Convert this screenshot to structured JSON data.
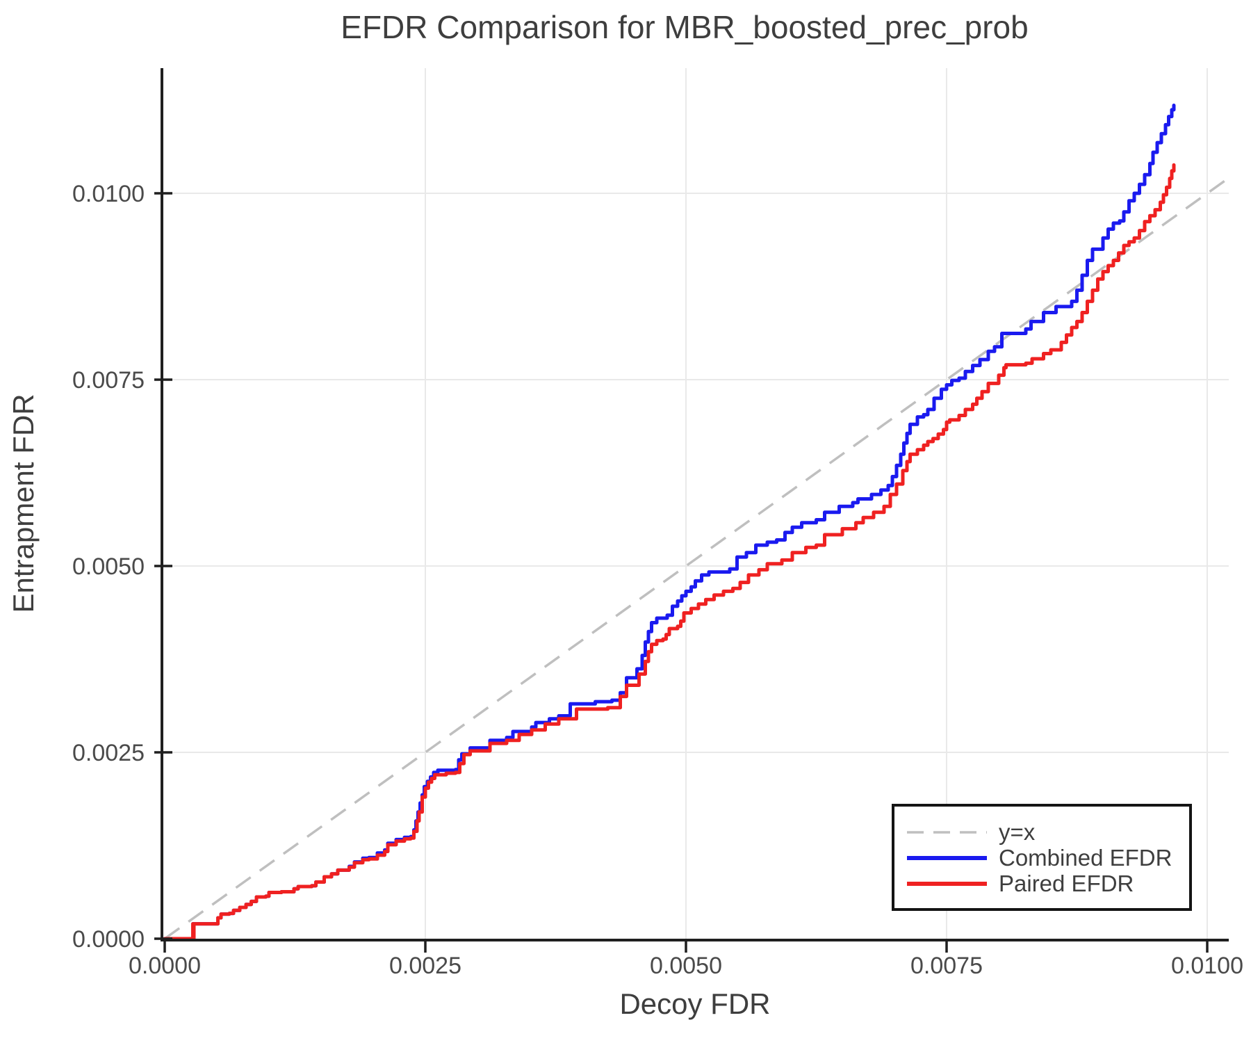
{
  "title": "EFDR Comparison for MBR_boosted_prec_prob",
  "axes": {
    "x_label": "Decoy FDR",
    "y_label": "Entrapment FDR",
    "x_ticks": [
      "0.0000",
      "0.0025",
      "0.0050",
      "0.0075",
      "0.0100"
    ],
    "y_ticks": [
      "0.0000",
      "0.0025",
      "0.0050",
      "0.0075",
      "0.0100"
    ]
  },
  "legend": {
    "items": [
      {
        "label": "y=x",
        "color": "#bfbfbf",
        "style": "dashed"
      },
      {
        "label": "Combined EFDR",
        "color": "#1a1aef",
        "style": "solid"
      },
      {
        "label": "Paired EFDR",
        "color": "#ef2121",
        "style": "solid"
      }
    ]
  },
  "chart_data": {
    "type": "line",
    "title": "EFDR Comparison for MBR_boosted_prec_prob",
    "xlabel": "Decoy FDR",
    "ylabel": "Entrapment FDR",
    "xlim": [
      0.0,
      0.0102
    ],
    "ylim": [
      0.0,
      0.01175
    ],
    "grid": true,
    "legend_position": "lower right",
    "grid_color": "#e9e9e9",
    "reference": {
      "name": "y=x",
      "style": "dashed",
      "color": "#bfbfbf",
      "from": [
        0.0,
        0.0
      ],
      "to": [
        0.0102,
        0.0102
      ]
    },
    "series": [
      {
        "name": "Combined EFDR",
        "color": "#1a1aef",
        "step": true,
        "points": [
          [
            0.0,
            0.0
          ],
          [
            0.0002,
            0.0
          ],
          [
            0.00027,
            0.0002
          ],
          [
            0.000275,
            0.0
          ],
          [
            0.00028,
            0.0002
          ],
          [
            0.00048,
            0.0002
          ],
          [
            0.00051,
            0.00028
          ],
          [
            0.00054,
            0.00033
          ],
          [
            0.00062,
            0.00034
          ],
          [
            0.00066,
            0.00038
          ],
          [
            0.00072,
            0.00042
          ],
          [
            0.00078,
            0.00046
          ],
          [
            0.00083,
            0.0005
          ],
          [
            0.00088,
            0.00056
          ],
          [
            0.00097,
            0.00057
          ],
          [
            0.001,
            0.00062
          ],
          [
            0.00112,
            0.00063
          ],
          [
            0.00124,
            0.00067
          ],
          [
            0.00128,
            0.0007
          ],
          [
            0.00141,
            0.00071
          ],
          [
            0.00145,
            0.00076
          ],
          [
            0.00153,
            0.00083
          ],
          [
            0.0016,
            0.00087
          ],
          [
            0.00166,
            0.00092
          ],
          [
            0.00177,
            0.00097
          ],
          [
            0.00182,
            0.00103
          ],
          [
            0.0019,
            0.00108
          ],
          [
            0.00196,
            0.00109
          ],
          [
            0.00204,
            0.00115
          ],
          [
            0.00211,
            0.00119
          ],
          [
            0.00214,
            0.00128
          ],
          [
            0.00222,
            0.00133
          ],
          [
            0.0023,
            0.00136
          ],
          [
            0.00236,
            0.00137
          ],
          [
            0.00239,
            0.00146
          ],
          [
            0.00241,
            0.00158
          ],
          [
            0.00243,
            0.0017
          ],
          [
            0.00245,
            0.00182
          ],
          [
            0.00247,
            0.00193
          ],
          [
            0.00249,
            0.00204
          ],
          [
            0.00252,
            0.00211
          ],
          [
            0.00255,
            0.00217
          ],
          [
            0.00258,
            0.00223
          ],
          [
            0.00262,
            0.00226
          ],
          [
            0.00279,
            0.00227
          ],
          [
            0.00282,
            0.0024
          ],
          [
            0.00285,
            0.00248
          ],
          [
            0.00293,
            0.00256
          ],
          [
            0.00312,
            0.00266
          ],
          [
            0.00328,
            0.0027
          ],
          [
            0.00334,
            0.00278
          ],
          [
            0.00352,
            0.00284
          ],
          [
            0.00356,
            0.0029
          ],
          [
            0.00369,
            0.00295
          ],
          [
            0.00378,
            0.00299
          ],
          [
            0.00389,
            0.00315
          ],
          [
            0.00413,
            0.00318
          ],
          [
            0.00429,
            0.0032
          ],
          [
            0.00437,
            0.0033
          ],
          [
            0.00443,
            0.0035
          ],
          [
            0.00453,
            0.00362
          ],
          [
            0.00458,
            0.0038
          ],
          [
            0.00461,
            0.00398
          ],
          [
            0.00464,
            0.00412
          ],
          [
            0.00467,
            0.00424
          ],
          [
            0.00472,
            0.0043
          ],
          [
            0.00482,
            0.00434
          ],
          [
            0.00487,
            0.00446
          ],
          [
            0.00492,
            0.00453
          ],
          [
            0.00496,
            0.0046
          ],
          [
            0.005,
            0.00466
          ],
          [
            0.00505,
            0.00472
          ],
          [
            0.00509,
            0.0048
          ],
          [
            0.00515,
            0.00488
          ],
          [
            0.00522,
            0.00492
          ],
          [
            0.00542,
            0.00496
          ],
          [
            0.00549,
            0.00512
          ],
          [
            0.00558,
            0.00518
          ],
          [
            0.00567,
            0.00528
          ],
          [
            0.00578,
            0.00532
          ],
          [
            0.00587,
            0.00535
          ],
          [
            0.00595,
            0.00545
          ],
          [
            0.00602,
            0.00552
          ],
          [
            0.00611,
            0.00558
          ],
          [
            0.00625,
            0.00562
          ],
          [
            0.00633,
            0.00572
          ],
          [
            0.00647,
            0.0058
          ],
          [
            0.0066,
            0.00585
          ],
          [
            0.00665,
            0.0059
          ],
          [
            0.00678,
            0.00596
          ],
          [
            0.00687,
            0.00602
          ],
          [
            0.00694,
            0.00608
          ],
          [
            0.00698,
            0.0062
          ],
          [
            0.00702,
            0.00635
          ],
          [
            0.00706,
            0.0065
          ],
          [
            0.00709,
            0.00665
          ],
          [
            0.00712,
            0.00678
          ],
          [
            0.00715,
            0.0069
          ],
          [
            0.00722,
            0.007
          ],
          [
            0.00728,
            0.00703
          ],
          [
            0.00732,
            0.0071
          ],
          [
            0.00738,
            0.00725
          ],
          [
            0.00745,
            0.00737
          ],
          [
            0.0075,
            0.00743
          ],
          [
            0.00755,
            0.00749
          ],
          [
            0.00762,
            0.00752
          ],
          [
            0.00768,
            0.00761
          ],
          [
            0.00775,
            0.00769
          ],
          [
            0.00782,
            0.00777
          ],
          [
            0.0079,
            0.00788
          ],
          [
            0.00796,
            0.00794
          ],
          [
            0.00803,
            0.00812
          ],
          [
            0.00826,
            0.00818
          ],
          [
            0.00831,
            0.00828
          ],
          [
            0.00843,
            0.0084
          ],
          [
            0.00855,
            0.00848
          ],
          [
            0.0087,
            0.00855
          ],
          [
            0.00875,
            0.0087
          ],
          [
            0.0088,
            0.0089
          ],
          [
            0.00885,
            0.0091
          ],
          [
            0.0089,
            0.00925
          ],
          [
            0.009,
            0.0094
          ],
          [
            0.00905,
            0.00952
          ],
          [
            0.0091,
            0.0096
          ],
          [
            0.00916,
            0.00963
          ],
          [
            0.0092,
            0.00975
          ],
          [
            0.00925,
            0.0099
          ],
          [
            0.0093,
            0.01
          ],
          [
            0.00935,
            0.01012
          ],
          [
            0.0094,
            0.01025
          ],
          [
            0.00945,
            0.0104
          ],
          [
            0.00948,
            0.01055
          ],
          [
            0.00952,
            0.01068
          ],
          [
            0.00956,
            0.0108
          ],
          [
            0.0096,
            0.01092
          ],
          [
            0.00963,
            0.01103
          ],
          [
            0.00966,
            0.01112
          ],
          [
            0.00968,
            0.01118
          ]
        ]
      },
      {
        "name": "Paired EFDR",
        "color": "#ef2121",
        "step": true,
        "points": [
          [
            0.0,
            0.0
          ],
          [
            0.0002,
            0.0
          ],
          [
            0.00027,
            0.0002
          ],
          [
            0.000275,
            0.0
          ],
          [
            0.00028,
            0.0002
          ],
          [
            0.00048,
            0.0002
          ],
          [
            0.00051,
            0.00028
          ],
          [
            0.00054,
            0.00033
          ],
          [
            0.00062,
            0.00034
          ],
          [
            0.00066,
            0.00038
          ],
          [
            0.00072,
            0.00042
          ],
          [
            0.00078,
            0.00046
          ],
          [
            0.00083,
            0.0005
          ],
          [
            0.00088,
            0.00056
          ],
          [
            0.00097,
            0.00057
          ],
          [
            0.001,
            0.00062
          ],
          [
            0.00112,
            0.00063
          ],
          [
            0.00124,
            0.00067
          ],
          [
            0.00128,
            0.0007
          ],
          [
            0.00141,
            0.00071
          ],
          [
            0.00145,
            0.00076
          ],
          [
            0.00153,
            0.00083
          ],
          [
            0.0016,
            0.00087
          ],
          [
            0.00166,
            0.00092
          ],
          [
            0.00177,
            0.00096
          ],
          [
            0.00182,
            0.00102
          ],
          [
            0.0019,
            0.00106
          ],
          [
            0.00196,
            0.00107
          ],
          [
            0.00204,
            0.00112
          ],
          [
            0.00211,
            0.00117
          ],
          [
            0.00214,
            0.00126
          ],
          [
            0.00222,
            0.00131
          ],
          [
            0.0023,
            0.00134
          ],
          [
            0.00236,
            0.00135
          ],
          [
            0.00239,
            0.00144
          ],
          [
            0.00242,
            0.00158
          ],
          [
            0.00244,
            0.0017
          ],
          [
            0.00247,
            0.0019
          ],
          [
            0.0025,
            0.00202
          ],
          [
            0.00253,
            0.0021
          ],
          [
            0.00256,
            0.00215
          ],
          [
            0.00259,
            0.0022
          ],
          [
            0.0027,
            0.00222
          ],
          [
            0.00279,
            0.00223
          ],
          [
            0.00283,
            0.00235
          ],
          [
            0.00287,
            0.00247
          ],
          [
            0.00293,
            0.00252
          ],
          [
            0.00312,
            0.00262
          ],
          [
            0.00328,
            0.00266
          ],
          [
            0.0034,
            0.00274
          ],
          [
            0.00352,
            0.0028
          ],
          [
            0.00365,
            0.00288
          ],
          [
            0.00378,
            0.00295
          ],
          [
            0.00395,
            0.00308
          ],
          [
            0.00425,
            0.0031
          ],
          [
            0.00437,
            0.00325
          ],
          [
            0.00443,
            0.0034
          ],
          [
            0.00455,
            0.00355
          ],
          [
            0.00461,
            0.00372
          ],
          [
            0.00464,
            0.00385
          ],
          [
            0.00467,
            0.00395
          ],
          [
            0.00472,
            0.004
          ],
          [
            0.00478,
            0.00402
          ],
          [
            0.00481,
            0.00408
          ],
          [
            0.00484,
            0.00416
          ],
          [
            0.00492,
            0.00419
          ],
          [
            0.00495,
            0.00426
          ],
          [
            0.00498,
            0.00437
          ],
          [
            0.00505,
            0.00443
          ],
          [
            0.00512,
            0.00449
          ],
          [
            0.00519,
            0.00455
          ],
          [
            0.00527,
            0.00461
          ],
          [
            0.00536,
            0.00466
          ],
          [
            0.00545,
            0.0047
          ],
          [
            0.00552,
            0.00478
          ],
          [
            0.0056,
            0.00488
          ],
          [
            0.0057,
            0.00495
          ],
          [
            0.00578,
            0.00503
          ],
          [
            0.00592,
            0.00508
          ],
          [
            0.00602,
            0.00518
          ],
          [
            0.00615,
            0.00525
          ],
          [
            0.00625,
            0.00528
          ],
          [
            0.00633,
            0.00542
          ],
          [
            0.0065,
            0.0055
          ],
          [
            0.00663,
            0.00558
          ],
          [
            0.0067,
            0.00565
          ],
          [
            0.0068,
            0.00572
          ],
          [
            0.0069,
            0.0058
          ],
          [
            0.00696,
            0.00596
          ],
          [
            0.00702,
            0.0061
          ],
          [
            0.00708,
            0.00628
          ],
          [
            0.00712,
            0.0064
          ],
          [
            0.00715,
            0.0065
          ],
          [
            0.00722,
            0.00656
          ],
          [
            0.00728,
            0.00662
          ],
          [
            0.00732,
            0.00667
          ],
          [
            0.00737,
            0.00671
          ],
          [
            0.00742,
            0.00677
          ],
          [
            0.00747,
            0.00683
          ],
          [
            0.0075,
            0.00693
          ],
          [
            0.00753,
            0.00696
          ],
          [
            0.00762,
            0.00702
          ],
          [
            0.00768,
            0.0071
          ],
          [
            0.00775,
            0.00717
          ],
          [
            0.00779,
            0.00725
          ],
          [
            0.00784,
            0.00734
          ],
          [
            0.0079,
            0.00745
          ],
          [
            0.008,
            0.00756
          ],
          [
            0.00805,
            0.00766
          ],
          [
            0.00807,
            0.0077
          ],
          [
            0.00826,
            0.00772
          ],
          [
            0.00832,
            0.00778
          ],
          [
            0.00843,
            0.00785
          ],
          [
            0.0085,
            0.0079
          ],
          [
            0.0086,
            0.008
          ],
          [
            0.00865,
            0.0081
          ],
          [
            0.0087,
            0.0082
          ],
          [
            0.00875,
            0.00828
          ],
          [
            0.0088,
            0.0084
          ],
          [
            0.00885,
            0.00855
          ],
          [
            0.0089,
            0.0087
          ],
          [
            0.00895,
            0.00885
          ],
          [
            0.009,
            0.00895
          ],
          [
            0.00905,
            0.00903
          ],
          [
            0.0091,
            0.0091
          ],
          [
            0.00915,
            0.0092
          ],
          [
            0.0092,
            0.0093
          ],
          [
            0.00925,
            0.00935
          ],
          [
            0.0093,
            0.0094
          ],
          [
            0.00935,
            0.0095
          ],
          [
            0.0094,
            0.00962
          ],
          [
            0.00945,
            0.0097
          ],
          [
            0.0095,
            0.00978
          ],
          [
            0.00955,
            0.00988
          ],
          [
            0.00958,
            0.00998
          ],
          [
            0.00961,
            0.01008
          ],
          [
            0.00964,
            0.0102
          ],
          [
            0.00966,
            0.0103
          ],
          [
            0.00968,
            0.01038
          ]
        ]
      }
    ]
  }
}
